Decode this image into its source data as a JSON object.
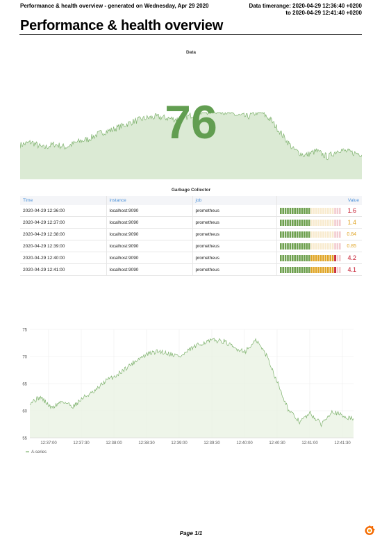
{
  "header": {
    "left": "Performance & health overview - generated on Wednesday, Apr 29 2020",
    "right_line1": "Data timerange: 2020-04-29 12:36:40 +0200",
    "right_line2": "to 2020-04-29 12:41:40 +0200"
  },
  "title": "Performance & health overview",
  "stat_panel": {
    "title": "Data",
    "value": "76"
  },
  "table_panel": {
    "title": "Garbage Collector",
    "columns": [
      "Time",
      "instance",
      "job",
      "Value"
    ],
    "rows": [
      {
        "time": "2020-04-29 12:36:00",
        "instance": "localhost:9090",
        "job": "prometheus",
        "value": "1.6",
        "num": 1.6
      },
      {
        "time": "2020-04-29 12:37:00",
        "instance": "localhost:9090",
        "job": "prometheus",
        "value": "1.4",
        "num": 1.4
      },
      {
        "time": "2020-04-29 12:38:00",
        "instance": "localhost:9090",
        "job": "prometheus",
        "value": "0.84",
        "num": 0.84
      },
      {
        "time": "2020-04-29 12:39:00",
        "instance": "localhost:9090",
        "job": "prometheus",
        "value": "0.85",
        "num": 0.85
      },
      {
        "time": "2020-04-29 12:40:00",
        "instance": "localhost:9090",
        "job": "prometheus",
        "value": "4.2",
        "num": 4.2
      },
      {
        "time": "2020-04-29 12:41:00",
        "instance": "localhost:9090",
        "job": "prometheus",
        "value": "4.1",
        "num": 4.1
      }
    ]
  },
  "colors": {
    "stat_green": "#629e51",
    "line_green": "#7eb26d",
    "fill_green": "#dbead4",
    "gauge_green": "#6ea04e",
    "gauge_yellow": "#e0a526",
    "gauge_red": "#c4162a"
  },
  "chart_data": {
    "type": "area",
    "ylim": [
      55,
      75
    ],
    "yticks": [
      "75",
      "70",
      "65",
      "60",
      "55"
    ],
    "xticks": [
      "12:37:00",
      "12:37:30",
      "12:38:00",
      "12:38:30",
      "12:39:00",
      "12:39:30",
      "12:40:00",
      "12:40:30",
      "12:41:00",
      "12:41:30"
    ],
    "grid": true,
    "legend": "bottom-left",
    "series": [
      {
        "name": "A-series",
        "x": [
          "12:36:40",
          "12:36:50",
          "12:37:00",
          "12:37:10",
          "12:37:20",
          "12:37:30",
          "12:37:40",
          "12:37:50",
          "12:38:00",
          "12:38:10",
          "12:38:20",
          "12:38:30",
          "12:38:40",
          "12:38:50",
          "12:39:00",
          "12:39:10",
          "12:39:20",
          "12:39:30",
          "12:39:40",
          "12:39:50",
          "12:40:00",
          "12:40:10",
          "12:40:20",
          "12:40:30",
          "12:40:40",
          "12:40:50",
          "12:41:00",
          "12:41:10",
          "12:41:20",
          "12:41:30",
          "12:41:40"
        ],
        "values": [
          61.5,
          62.5,
          60.5,
          61.8,
          60.8,
          62.5,
          63.5,
          65.5,
          66.5,
          68.0,
          69.5,
          70.5,
          71.0,
          70.5,
          70.0,
          71.5,
          72.5,
          73.0,
          72.8,
          71.5,
          71.0,
          73.0,
          70.0,
          65.0,
          60.0,
          58.0,
          59.5,
          57.5,
          60.0,
          59.0,
          58.5
        ]
      }
    ]
  },
  "footer": "Page 1/1",
  "logo": "grafana-logo"
}
